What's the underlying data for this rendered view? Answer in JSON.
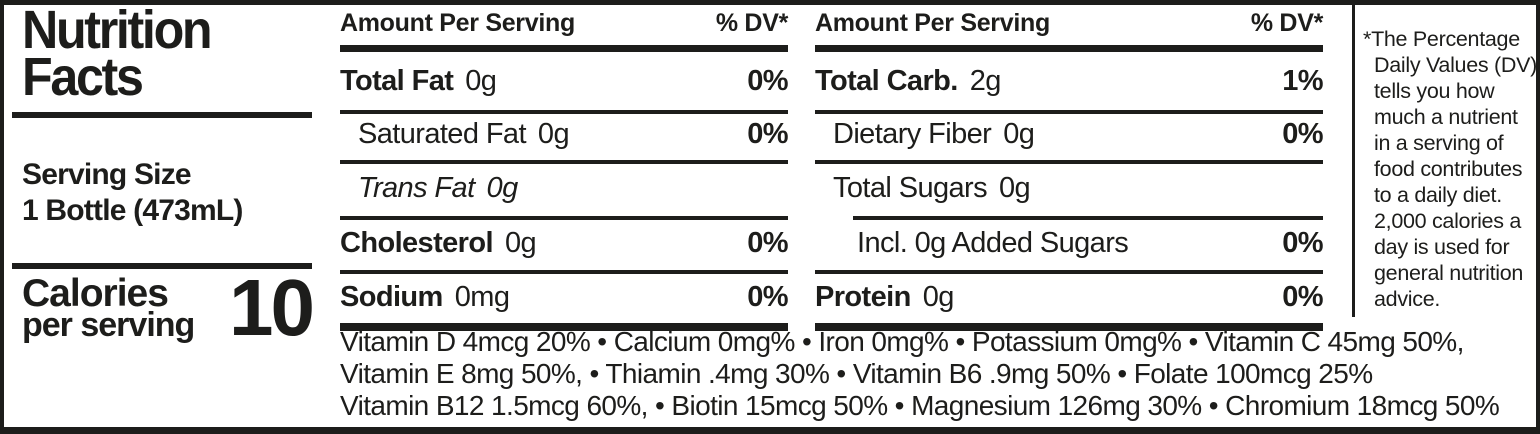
{
  "title": {
    "line1": "Nutrition",
    "line2": "Facts"
  },
  "serving": {
    "label": "Serving Size",
    "value": "1 Bottle (473mL)"
  },
  "calories": {
    "label_line1": "Calories",
    "label_line2": "per serving",
    "value": "10"
  },
  "columns": [
    {
      "header": {
        "amount": "Amount Per Serving",
        "dv": "% DV*"
      },
      "rows": [
        {
          "name": "Total Fat",
          "amount": "0g",
          "dv": "0%"
        },
        {
          "name": "Saturated Fat",
          "amount": "0g",
          "dv": "0%"
        },
        {
          "name": "Trans Fat",
          "amount": "0g",
          "dv": ""
        },
        {
          "name": "Cholesterol",
          "amount": "0g",
          "dv": "0%"
        },
        {
          "name": "Sodium",
          "amount": "0mg",
          "dv": "0%"
        }
      ]
    },
    {
      "header": {
        "amount": "Amount Per Serving",
        "dv": "% DV*"
      },
      "rows": [
        {
          "name": "Total Carb.",
          "amount": "2g",
          "dv": "1%"
        },
        {
          "name": "Dietary Fiber",
          "amount": "0g",
          "dv": "0%"
        },
        {
          "name": "Total Sugars",
          "amount": "0g",
          "dv": ""
        },
        {
          "name": "Incl. 0g Added Sugars",
          "amount": "",
          "dv": "0%"
        },
        {
          "name": "Protein",
          "amount": "0g",
          "dv": "0%"
        }
      ]
    }
  ],
  "footnote": "*The Percentage Daily Values (DV) tells you how much a nutrient in a serving of food contributes to a daily diet. 2,000 calories a day is used for general nutrition advice.",
  "vitamins": {
    "lines": [
      "Vitamin D 4mcg 20% • Calcium 0mg% • Iron 0mg% • Potassium 0mg% • Vitamin C 45mg 50%,",
      "Vitamin E 8mg 50%, • Thiamin .4mg 30% • Vitamin B6 .9mg 50% • Folate 100mcg 25%",
      "Vitamin B12 1.5mcg 60%, • Biotin 15mcg 50% • Magnesium 126mg 30% • Chromium 18mcg 50%"
    ]
  },
  "colors": {
    "ink": "#1d1d1b",
    "background": "#ffffff"
  }
}
